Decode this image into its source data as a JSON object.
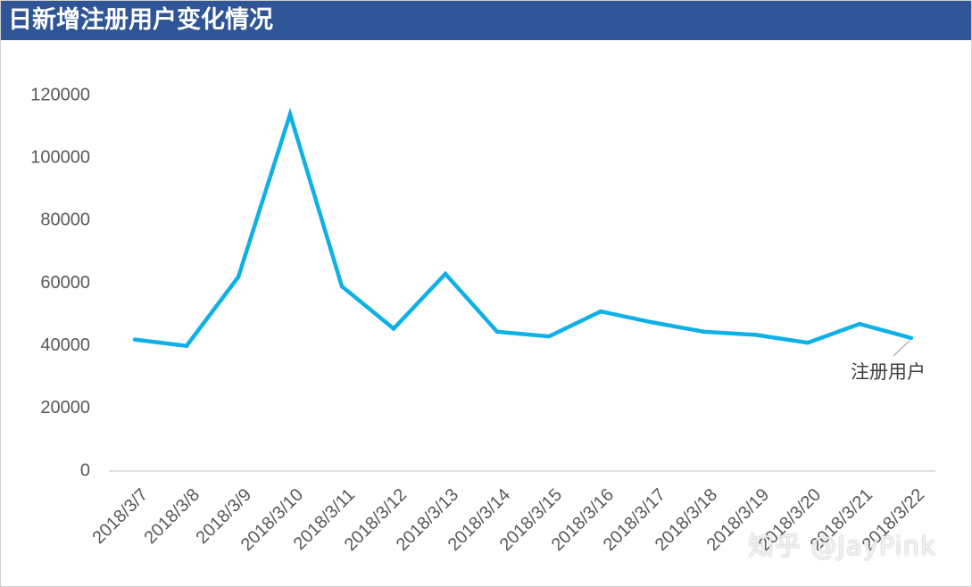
{
  "title": "日新增注册用户变化情况",
  "watermark": "知乎 @JayPink",
  "colors": {
    "title_bar": "#2F5597",
    "line": "#0EB0E8",
    "axis": "#D9D9D9",
    "tick_text": "#595959",
    "leader": "#A6A6A6"
  },
  "chart_data": {
    "type": "line",
    "title": "日新增注册用户变化情况",
    "xlabel": "",
    "ylabel": "",
    "ylim": [
      0,
      120000
    ],
    "yticks": [
      0,
      20000,
      40000,
      60000,
      80000,
      100000,
      120000
    ],
    "ytick_labels": [
      "0",
      "20000",
      "40000",
      "60000",
      "80000",
      "100000",
      "120000"
    ],
    "grid": false,
    "legend": "none",
    "categories": [
      "2018/3/7",
      "2018/3/8",
      "2018/3/9",
      "2018/3/10",
      "2018/3/11",
      "2018/3/12",
      "2018/3/13",
      "2018/3/14",
      "2018/3/15",
      "2018/3/16",
      "2018/3/17",
      "2018/3/18",
      "2018/3/19",
      "2018/3/20",
      "2018/3/21",
      "2018/3/22"
    ],
    "series": [
      {
        "name": "注册用户",
        "color": "#0EB0E8",
        "values": [
          42000,
          40000,
          62000,
          114000,
          59000,
          45500,
          63000,
          44500,
          43000,
          51000,
          47500,
          44500,
          43500,
          41000,
          47000,
          42500
        ]
      }
    ]
  }
}
